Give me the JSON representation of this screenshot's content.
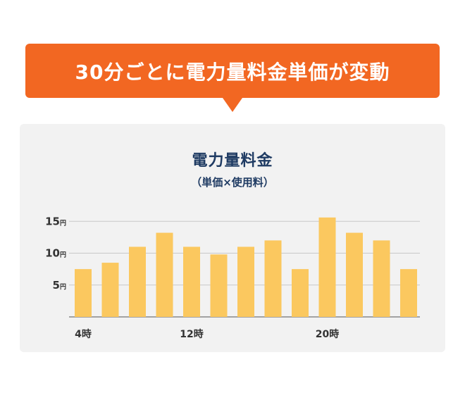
{
  "banner": {
    "text": "30分ごとに電力量料金単価が変動"
  },
  "chart_data": {
    "type": "bar",
    "title": "電力量料金",
    "subtitle": "（単価×使用料）",
    "y_unit": "円",
    "ylim": [
      0,
      15.5
    ],
    "yticks": [
      5,
      10,
      15
    ],
    "x_tick_labels": [
      {
        "index": 0,
        "label": "4時"
      },
      {
        "index": 4,
        "label": "12時"
      },
      {
        "index": 9,
        "label": "20時"
      }
    ],
    "values": [
      7.5,
      8.5,
      11,
      13.2,
      11,
      9.8,
      11,
      12,
      7.5,
      15.6,
      13.2,
      12,
      7.5
    ],
    "grid": true,
    "colors": {
      "bar": "#fbc85f",
      "grid": "#c8c8c8",
      "axis": "#888888"
    }
  }
}
